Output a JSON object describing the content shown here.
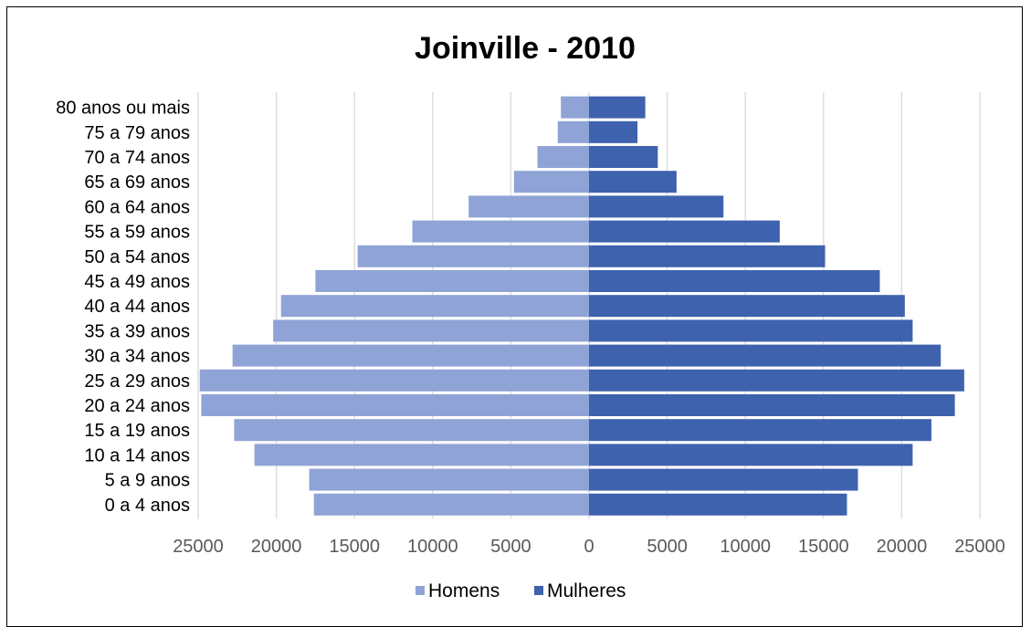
{
  "chart_data": {
    "type": "bar",
    "orientation": "horizontal",
    "title": "Joinville - 2010",
    "categories": [
      "0 a 4 anos",
      "5 a 9 anos",
      "10 a 14 anos",
      "15 a 19 anos",
      "20 a 24 anos",
      "25 a 29 anos",
      "30 a 34 anos",
      "35 a 39 anos",
      "40 a 44 anos",
      "45 a 49 anos",
      "50 a 54 anos",
      "55 a 59 anos",
      "60 a 64 anos",
      "65 a 69 anos",
      "70 a 74 anos",
      "75 a 79 anos",
      "80 anos ou mais"
    ],
    "series": [
      {
        "name": "Homens",
        "color": "#8FA3D6",
        "values": [
          17600,
          17900,
          21400,
          22700,
          24800,
          24900,
          22800,
          20200,
          19700,
          17500,
          14800,
          11300,
          7700,
          4800,
          3300,
          2000,
          1800
        ]
      },
      {
        "name": "Mulheres",
        "color": "#3F62AE",
        "values": [
          16500,
          17200,
          20700,
          21900,
          23400,
          24000,
          22500,
          20700,
          20200,
          18600,
          15100,
          12200,
          8600,
          5600,
          4400,
          3100,
          3600
        ]
      }
    ],
    "x_tick_labels": [
      "25000",
      "20000",
      "15000",
      "10000",
      "5000",
      "0",
      "5000",
      "10000",
      "15000",
      "20000",
      "25000"
    ],
    "x_tick_values": [
      -25000,
      -20000,
      -15000,
      -10000,
      -5000,
      0,
      5000,
      10000,
      15000,
      20000,
      25000
    ],
    "xlim": [
      -25000,
      25000
    ],
    "grid": "vertical",
    "legend_position": "bottom"
  }
}
